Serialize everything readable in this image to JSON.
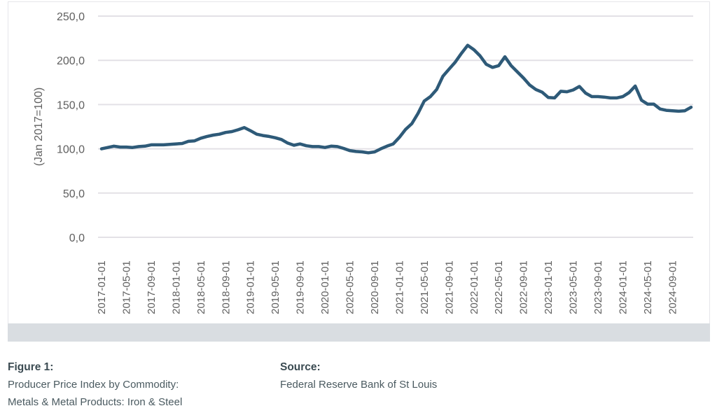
{
  "chart_data": {
    "type": "line",
    "title": "",
    "xlabel": "",
    "ylabel": "(Jan 2017=100)",
    "ylim": [
      0,
      250
    ],
    "yticks": [
      "0,0",
      "50,0",
      "100,0",
      "150,0",
      "200,0",
      "250,0"
    ],
    "ytick_values": [
      0,
      50,
      100,
      150,
      200,
      250
    ],
    "grid": true,
    "legend": "none",
    "line_color": "#2e5a78",
    "xtick_labels": [
      "2017-01-01",
      "2017-05-01",
      "2017-09-01",
      "2018-01-01",
      "2018-05-01",
      "2018-09-01",
      "2019-01-01",
      "2019-05-01",
      "2019-09-01",
      "2020-01-01",
      "2020-05-01",
      "2020-09-01",
      "2021-01-01",
      "2021-05-01",
      "2021-09-01",
      "2022-01-01",
      "2022-05-01",
      "2022-09-01",
      "2023-01-01",
      "2023-05-01",
      "2023-09-01",
      "2024-01-01",
      "2024-05-01",
      "2024-09-01"
    ],
    "x_start": "2017-01",
    "x_end": "2024-10",
    "series": [
      {
        "name": "PPI Iron & Steel",
        "values": [
          100,
          101.5,
          103,
          102,
          102,
          101.5,
          102.5,
          103,
          104.5,
          104.5,
          104.5,
          105,
          105.5,
          106,
          108.5,
          109,
          112,
          114,
          115.5,
          116.5,
          118.5,
          119.5,
          121.5,
          124,
          120.5,
          116.5,
          115,
          114,
          112.5,
          110.5,
          106.5,
          104,
          105.5,
          103.5,
          102.5,
          102.5,
          101.5,
          103,
          102.5,
          100.5,
          98,
          97,
          96.5,
          95.5,
          96.5,
          100,
          103,
          105.5,
          113,
          122,
          128.5,
          140,
          154,
          159,
          167,
          182,
          190,
          198,
          208,
          217,
          212,
          205,
          195.5,
          192,
          194,
          204,
          194,
          187,
          180,
          172,
          167,
          164,
          158,
          157.5,
          165,
          164.5,
          166.5,
          170.5,
          163,
          159,
          159,
          158.5,
          157.5,
          157.5,
          159,
          163.5,
          171,
          155,
          150.5,
          150.5,
          145,
          143.5,
          143,
          142.5,
          143,
          147
        ]
      }
    ]
  },
  "captions": {
    "figure_head": "Figure 1:",
    "figure_line1": "Producer Price Index by Commodity:",
    "figure_line2": "Metals & Metal Products: Iron & Steel",
    "source_head": "Source:",
    "source_line1": "Federal Reserve Bank of St Louis"
  }
}
